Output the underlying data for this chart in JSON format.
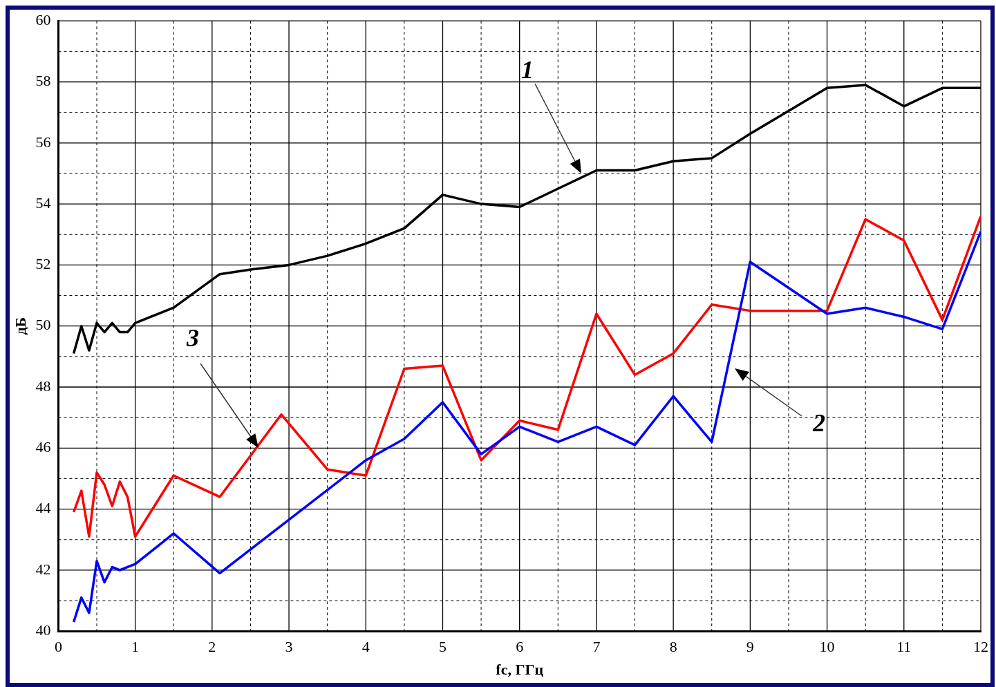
{
  "chart_data": {
    "type": "line",
    "xlabel": "fc, ГГц",
    "ylabel": "дБ",
    "xlim": [
      0,
      12
    ],
    "ylim": [
      40,
      60
    ],
    "xticks": [
      0,
      {
        "value": 0.5,
        "label": null
      },
      1,
      {
        "value": 1.5,
        "label": null
      },
      2,
      {
        "value": 2.5,
        "label": null
      },
      3,
      {
        "value": 3.5,
        "label": null
      },
      4,
      {
        "value": 4.5,
        "label": null
      },
      5,
      {
        "value": 5.5,
        "label": null
      },
      6,
      {
        "value": 6.5,
        "label": null
      },
      7,
      {
        "value": 7.5,
        "label": null
      },
      8,
      {
        "value": 8.5,
        "label": null
      },
      9,
      {
        "value": 9.5,
        "label": null
      },
      10,
      {
        "value": 10.5,
        "label": null
      },
      11,
      {
        "value": 11.5,
        "label": null
      },
      12
    ],
    "yticks": [
      40,
      {
        "value": 41,
        "label": null
      },
      42,
      {
        "value": 43,
        "label": null
      },
      44,
      {
        "value": 45,
        "label": null
      },
      46,
      {
        "value": 47,
        "label": null
      },
      48,
      {
        "value": 49,
        "label": null
      },
      50,
      {
        "value": 51,
        "label": null
      },
      52,
      {
        "value": 53,
        "label": null
      },
      54,
      {
        "value": 55,
        "label": null
      },
      56,
      {
        "value": 57,
        "label": null
      },
      58,
      {
        "value": 59,
        "label": null
      },
      60
    ],
    "grid": true,
    "legend": false,
    "marker": "none",
    "line_style": "solid",
    "series": [
      {
        "color": "#000000",
        "x": [
          0.2,
          0.3,
          0.4,
          0.5,
          0.6,
          0.7,
          0.8,
          0.9,
          1.0,
          1.5,
          2.1,
          2.5,
          3,
          3.5,
          4,
          4.5,
          5,
          5.5,
          6,
          6.5,
          7,
          7.5,
          8,
          8.5,
          9,
          9.5,
          10,
          10.5,
          11,
          11.5,
          12
        ],
        "values": [
          49.1,
          50.0,
          49.2,
          50.1,
          49.8,
          50.1,
          49.8,
          49.8,
          50.1,
          50.6,
          51.7,
          51.85,
          52.0,
          52.3,
          52.7,
          53.2,
          54.3,
          54.0,
          53.9,
          54.5,
          55.1,
          55.1,
          55.4,
          55.5,
          56.3,
          57.05,
          57.8,
          57.9,
          57.2,
          57.8,
          57.8
        ]
      },
      {
        "color": "#0000ff",
        "x": [
          0.2,
          0.3,
          0.4,
          0.5,
          0.6,
          0.7,
          0.8,
          0.9,
          1.0,
          1.5,
          2.1,
          4,
          4.5,
          5,
          5.5,
          6,
          6.5,
          7,
          7.5,
          8,
          8.5,
          9,
          10,
          10.5,
          11,
          11.5,
          12
        ],
        "values": [
          40.3,
          41.1,
          40.6,
          42.3,
          41.6,
          42.1,
          42.0,
          42.1,
          42.2,
          43.2,
          41.9,
          45.6,
          46.3,
          47.5,
          45.8,
          46.7,
          46.2,
          46.7,
          46.1,
          47.7,
          46.2,
          52.1,
          50.4,
          50.6,
          50.3,
          49.9,
          53.1
        ]
      },
      {
        "color": "#ff0000",
        "x": [
          0.2,
          0.3,
          0.4,
          0.5,
          0.6,
          0.7,
          0.8,
          0.9,
          1.0,
          1.5,
          2.1,
          2.9,
          3.5,
          4,
          4.5,
          5,
          5.5,
          6,
          6.5,
          7,
          7.5,
          8,
          8.5,
          9,
          10,
          10.5,
          11,
          11.5,
          12
        ],
        "values": [
          43.9,
          44.6,
          43.1,
          45.2,
          44.8,
          44.1,
          44.9,
          44.4,
          43.1,
          45.1,
          44.4,
          47.1,
          45.3,
          45.1,
          48.6,
          48.7,
          45.6,
          46.9,
          46.6,
          50.4,
          48.4,
          49.1,
          50.7,
          50.5,
          50.5,
          53.5,
          52.8,
          50.2,
          53.6
        ]
      }
    ],
    "annotations": [
      "1",
      "2",
      "3"
    ]
  }
}
